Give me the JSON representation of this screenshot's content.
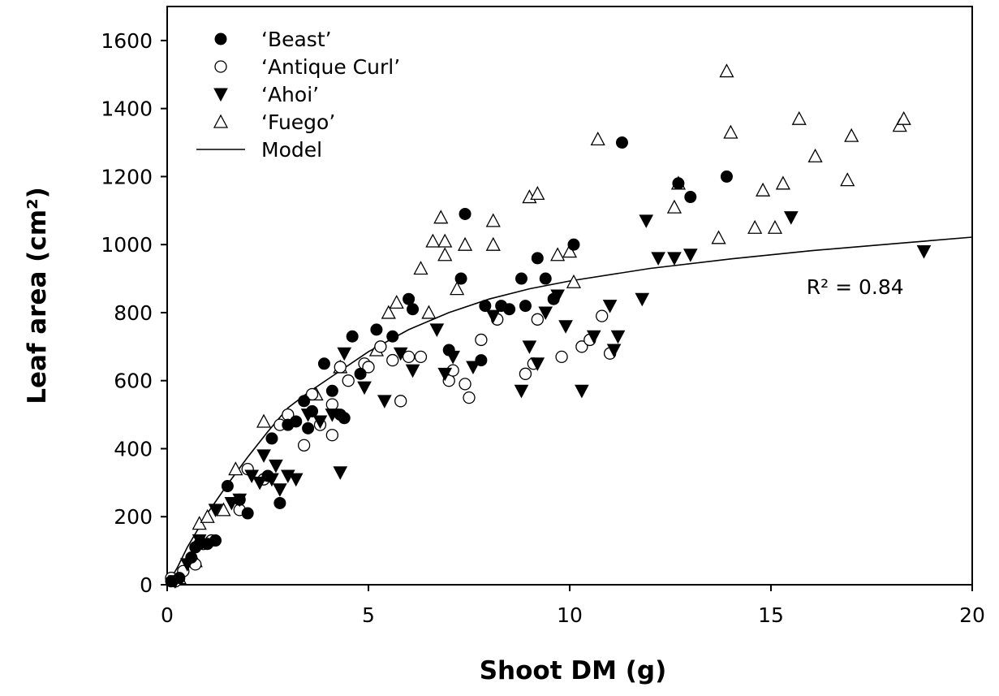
{
  "chart_data": {
    "type": "scatter",
    "title": "",
    "xlabel": "Shoot DM (g)",
    "ylabel": "Leaf area (cm²)",
    "xlim": [
      0,
      20
    ],
    "ylim": [
      0,
      1700
    ],
    "xticks": [
      0,
      5,
      10,
      15,
      20
    ],
    "yticks": [
      0,
      200,
      400,
      600,
      800,
      1000,
      1200,
      1400,
      1600
    ],
    "grid": false,
    "legend_position": "top-left",
    "annotation": {
      "text": "R² = 0.84",
      "x": 18.3,
      "y": 855
    },
    "model": {
      "name": "Model",
      "x": [
        0,
        0.25,
        0.5,
        1,
        1.5,
        2,
        2.5,
        3,
        3.5,
        4,
        5,
        6,
        7,
        8,
        9,
        10,
        12,
        14,
        16,
        18,
        20
      ],
      "y": [
        0,
        50,
        110,
        210,
        295,
        375,
        450,
        520,
        565,
        605,
        685,
        750,
        800,
        840,
        870,
        893,
        930,
        958,
        982,
        1002,
        1022
      ]
    },
    "series": [
      {
        "name": "‘Beast’",
        "marker": "filled-circle",
        "points": [
          [
            0.1,
            10
          ],
          [
            0.3,
            20
          ],
          [
            0.6,
            80
          ],
          [
            0.7,
            110
          ],
          [
            0.8,
            120
          ],
          [
            1.0,
            120
          ],
          [
            1.2,
            130
          ],
          [
            1.5,
            290
          ],
          [
            1.8,
            250
          ],
          [
            2.0,
            210
          ],
          [
            2.5,
            320
          ],
          [
            2.6,
            430
          ],
          [
            2.8,
            240
          ],
          [
            3.0,
            470
          ],
          [
            3.2,
            480
          ],
          [
            3.4,
            540
          ],
          [
            3.5,
            460
          ],
          [
            3.6,
            510
          ],
          [
            3.9,
            650
          ],
          [
            4.1,
            570
          ],
          [
            4.3,
            500
          ],
          [
            4.4,
            490
          ],
          [
            4.6,
            730
          ],
          [
            4.8,
            620
          ],
          [
            5.2,
            750
          ],
          [
            5.6,
            730
          ],
          [
            6.0,
            840
          ],
          [
            6.1,
            810
          ],
          [
            7.0,
            690
          ],
          [
            7.3,
            900
          ],
          [
            7.4,
            1090
          ],
          [
            7.8,
            660
          ],
          [
            7.9,
            820
          ],
          [
            8.3,
            820
          ],
          [
            8.5,
            810
          ],
          [
            8.8,
            900
          ],
          [
            8.9,
            820
          ],
          [
            9.2,
            960
          ],
          [
            9.4,
            900
          ],
          [
            9.6,
            840
          ],
          [
            10.1,
            1000
          ],
          [
            11.3,
            1300
          ],
          [
            12.7,
            1180
          ],
          [
            13.0,
            1140
          ],
          [
            13.9,
            1200
          ]
        ]
      },
      {
        "name": "‘Antique Curl’",
        "marker": "open-circle",
        "points": [
          [
            0.1,
            20
          ],
          [
            0.2,
            10
          ],
          [
            0.4,
            40
          ],
          [
            0.7,
            60
          ],
          [
            0.9,
            120
          ],
          [
            1.1,
            130
          ],
          [
            1.8,
            220
          ],
          [
            2.0,
            340
          ],
          [
            2.4,
            310
          ],
          [
            2.8,
            470
          ],
          [
            3.0,
            500
          ],
          [
            3.4,
            410
          ],
          [
            3.6,
            560
          ],
          [
            3.8,
            470
          ],
          [
            4.1,
            530
          ],
          [
            4.1,
            440
          ],
          [
            4.3,
            640
          ],
          [
            4.5,
            600
          ],
          [
            4.9,
            650
          ],
          [
            5.0,
            640
          ],
          [
            5.3,
            700
          ],
          [
            5.6,
            660
          ],
          [
            5.8,
            540
          ],
          [
            6.0,
            670
          ],
          [
            6.3,
            670
          ],
          [
            7.0,
            600
          ],
          [
            7.1,
            630
          ],
          [
            7.4,
            590
          ],
          [
            7.5,
            550
          ],
          [
            7.8,
            720
          ],
          [
            8.2,
            780
          ],
          [
            8.9,
            620
          ],
          [
            9.1,
            650
          ],
          [
            9.2,
            780
          ],
          [
            9.8,
            670
          ],
          [
            10.3,
            700
          ],
          [
            10.5,
            720
          ],
          [
            10.8,
            790
          ],
          [
            11.0,
            680
          ]
        ]
      },
      {
        "name": "‘Ahoi’",
        "marker": "filled-triangle-down",
        "points": [
          [
            0.2,
            10
          ],
          [
            0.5,
            60
          ],
          [
            0.8,
            130
          ],
          [
            1.2,
            220
          ],
          [
            1.6,
            240
          ],
          [
            1.8,
            250
          ],
          [
            2.1,
            320
          ],
          [
            2.3,
            300
          ],
          [
            2.4,
            380
          ],
          [
            2.6,
            310
          ],
          [
            2.7,
            350
          ],
          [
            2.8,
            280
          ],
          [
            3.0,
            320
          ],
          [
            3.2,
            310
          ],
          [
            3.5,
            500
          ],
          [
            3.8,
            480
          ],
          [
            4.1,
            500
          ],
          [
            4.3,
            330
          ],
          [
            4.4,
            680
          ],
          [
            4.9,
            580
          ],
          [
            5.4,
            540
          ],
          [
            5.8,
            680
          ],
          [
            6.1,
            630
          ],
          [
            6.7,
            750
          ],
          [
            6.9,
            620
          ],
          [
            7.1,
            670
          ],
          [
            7.6,
            640
          ],
          [
            8.1,
            790
          ],
          [
            8.8,
            570
          ],
          [
            9.0,
            700
          ],
          [
            9.2,
            650
          ],
          [
            9.4,
            800
          ],
          [
            9.7,
            850
          ],
          [
            9.9,
            760
          ],
          [
            10.3,
            570
          ],
          [
            10.6,
            730
          ],
          [
            11.0,
            820
          ],
          [
            11.1,
            690
          ],
          [
            11.2,
            730
          ],
          [
            11.8,
            840
          ],
          [
            11.9,
            1070
          ],
          [
            12.2,
            960
          ],
          [
            12.6,
            960
          ],
          [
            13.0,
            970
          ],
          [
            15.5,
            1080
          ],
          [
            18.8,
            980
          ]
        ]
      },
      {
        "name": "‘Fuego’",
        "marker": "open-triangle-up",
        "points": [
          [
            0.3,
            20
          ],
          [
            0.7,
            70
          ],
          [
            0.8,
            180
          ],
          [
            1.0,
            200
          ],
          [
            1.4,
            220
          ],
          [
            1.7,
            340
          ],
          [
            2.4,
            480
          ],
          [
            3.7,
            560
          ],
          [
            4.3,
            640
          ],
          [
            5.2,
            690
          ],
          [
            5.5,
            800
          ],
          [
            5.7,
            830
          ],
          [
            6.3,
            930
          ],
          [
            6.5,
            800
          ],
          [
            6.6,
            1010
          ],
          [
            6.8,
            1080
          ],
          [
            6.9,
            970
          ],
          [
            6.9,
            1010
          ],
          [
            7.2,
            870
          ],
          [
            7.4,
            1000
          ],
          [
            8.1,
            1070
          ],
          [
            8.1,
            1000
          ],
          [
            9.0,
            1140
          ],
          [
            9.2,
            1150
          ],
          [
            9.7,
            970
          ],
          [
            10.0,
            980
          ],
          [
            10.1,
            890
          ],
          [
            10.7,
            1310
          ],
          [
            12.6,
            1110
          ],
          [
            12.7,
            1180
          ],
          [
            13.7,
            1020
          ],
          [
            13.9,
            1510
          ],
          [
            14.0,
            1330
          ],
          [
            14.6,
            1050
          ],
          [
            14.8,
            1160
          ],
          [
            15.1,
            1050
          ],
          [
            15.3,
            1180
          ],
          [
            15.7,
            1370
          ],
          [
            16.1,
            1260
          ],
          [
            16.9,
            1190
          ],
          [
            17.0,
            1320
          ],
          [
            18.2,
            1350
          ],
          [
            18.3,
            1370
          ]
        ]
      }
    ]
  }
}
